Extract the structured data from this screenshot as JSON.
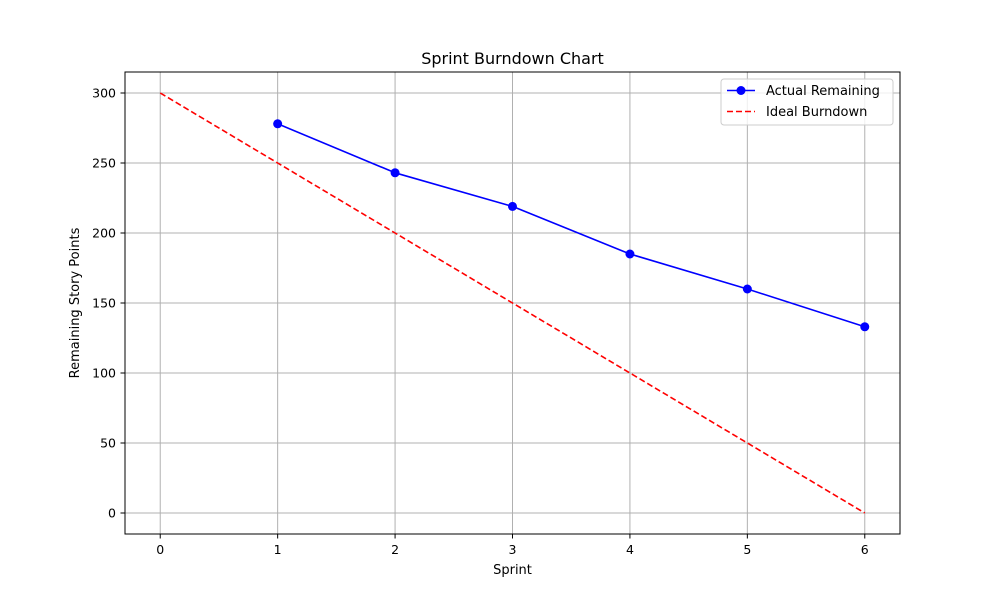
{
  "chart_data": {
    "type": "line",
    "title": "Sprint Burndown Chart",
    "xlabel": "Sprint",
    "ylabel": "Remaining Story Points",
    "xlim": [
      -0.3,
      6.3
    ],
    "ylim": [
      -15,
      315
    ],
    "x_ticks": [
      0,
      1,
      2,
      3,
      4,
      5,
      6
    ],
    "y_ticks": [
      0,
      50,
      100,
      150,
      200,
      250,
      300
    ],
    "grid": true,
    "legend_position": "top-right",
    "series": [
      {
        "name": "Actual Remaining",
        "style": "solid-with-markers",
        "color": "#0000ff",
        "x": [
          1,
          2,
          3,
          4,
          5,
          6
        ],
        "values": [
          278,
          243,
          219,
          185,
          160,
          133
        ]
      },
      {
        "name": "Ideal Burndown",
        "style": "dashed",
        "color": "#ff0000",
        "x": [
          0,
          1,
          2,
          3,
          4,
          5,
          6
        ],
        "values": [
          300,
          250,
          200,
          150,
          100,
          50,
          0
        ]
      }
    ]
  }
}
